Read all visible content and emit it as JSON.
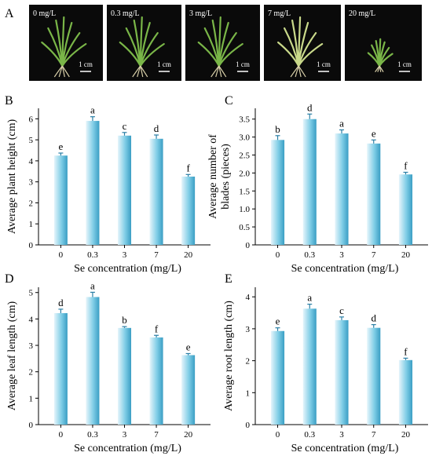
{
  "panel_labels": {
    "a": "A",
    "b": "B",
    "c": "C",
    "d": "D",
    "e": "E"
  },
  "photos": [
    {
      "label": "0 mg/L",
      "scale": "1 cm"
    },
    {
      "label": "0.3 mg/L",
      "scale": "1 cm"
    },
    {
      "label": "3 mg/L",
      "scale": "1 cm"
    },
    {
      "label": "7 mg/L",
      "scale": "1 cm"
    },
    {
      "label": "20 mg/L",
      "scale": "1 cm"
    }
  ],
  "colors": {
    "bar_light": "#e6f5fb",
    "bar_mid": "#7fcde6",
    "bar_dark": "#3a9ec4",
    "photo_bg": "#0a0a0a",
    "leaf_green": "#7ab648"
  },
  "chart_data": [
    {
      "type": "bar",
      "panel": "B",
      "categories": [
        "0",
        "0.3",
        "3",
        "7",
        "20"
      ],
      "values": [
        4.25,
        5.9,
        5.2,
        5.05,
        3.25
      ],
      "errors": [
        0.12,
        0.2,
        0.15,
        0.18,
        0.1
      ],
      "letters": [
        "e",
        "a",
        "c",
        "d",
        "f"
      ],
      "xlabel": "Se concentration (mg/L)",
      "ylabel": "Average plant height (cm)",
      "ylim": [
        0,
        6.5
      ],
      "yticks": [
        0,
        1,
        2,
        3,
        4,
        5,
        6
      ]
    },
    {
      "type": "bar",
      "panel": "C",
      "categories": [
        "0",
        "0.3",
        "3",
        "7",
        "20"
      ],
      "values": [
        2.92,
        3.5,
        3.1,
        2.82,
        1.96
      ],
      "errors": [
        0.12,
        0.14,
        0.1,
        0.1,
        0.06
      ],
      "letters": [
        "b",
        "d",
        "a",
        "e",
        "f"
      ],
      "xlabel": "Se concentration (mg/L)",
      "ylabel": "Average number of blades (pieces)",
      "ylim": [
        0,
        3.8
      ],
      "yticks": [
        0,
        0.5,
        1.0,
        1.5,
        2.0,
        2.5,
        3.0,
        3.5
      ]
    },
    {
      "type": "bar",
      "panel": "D",
      "categories": [
        "0",
        "0.3",
        "3",
        "7",
        "20"
      ],
      "values": [
        4.22,
        4.83,
        3.66,
        3.3,
        2.63
      ],
      "errors": [
        0.15,
        0.18,
        0.05,
        0.08,
        0.06
      ],
      "letters": [
        "d",
        "a",
        "b",
        "f",
        "e"
      ],
      "xlabel": "Se concentration (mg/L)",
      "ylabel": "Average leaf length (cm)",
      "ylim": [
        0,
        5.2
      ],
      "yticks": [
        0,
        1,
        2,
        3,
        4,
        5
      ]
    },
    {
      "type": "bar",
      "panel": "E",
      "categories": [
        "0",
        "0.3",
        "3",
        "7",
        "20"
      ],
      "values": [
        2.93,
        3.63,
        3.27,
        3.03,
        2.02
      ],
      "errors": [
        0.1,
        0.14,
        0.1,
        0.1,
        0.06
      ],
      "letters": [
        "e",
        "a",
        "c",
        "d",
        "f"
      ],
      "xlabel": "Se concentration (mg/L)",
      "ylabel": "Average root length (cm)",
      "ylim": [
        0,
        4.3
      ],
      "yticks": [
        0,
        1,
        2,
        3,
        4
      ]
    }
  ]
}
